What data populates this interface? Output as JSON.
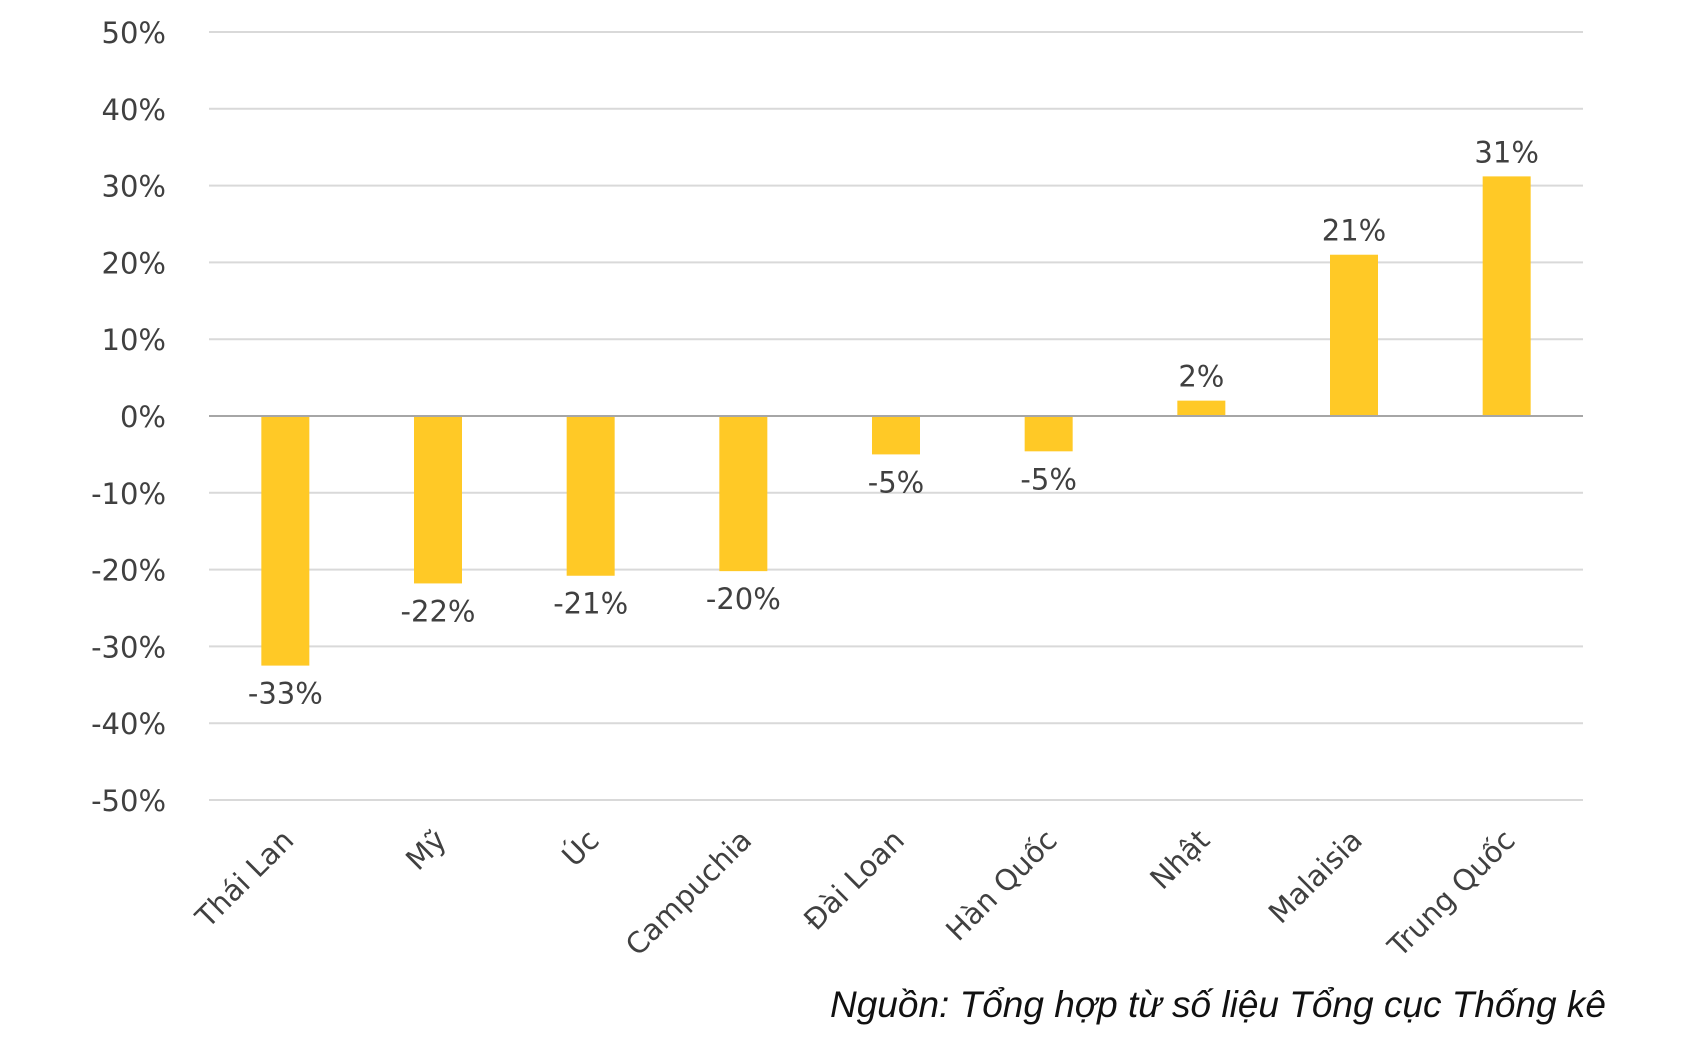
{
  "chart_data": {
    "type": "bar",
    "categories": [
      "Thái Lan",
      "Mỹ",
      "Úc",
      "Campuchia",
      "Đài Loan",
      "Hàn Quốc",
      "Nhật",
      "Malaisia",
      "Trung Quốc"
    ],
    "values": [
      -32.5,
      -21.8,
      -20.8,
      -20.2,
      -5.0,
      -4.6,
      2.0,
      21.0,
      31.2
    ],
    "data_labels": [
      "-33%",
      "-22%",
      "-21%",
      "-20%",
      "-5%",
      "-5%",
      "2%",
      "21%",
      "31%"
    ],
    "ylim": [
      -50,
      50
    ],
    "y_ticks": [
      50,
      40,
      30,
      20,
      10,
      0,
      -10,
      -20,
      -30,
      -40,
      -50
    ],
    "y_tick_labels": [
      "50%",
      "40%",
      "30%",
      "20%",
      "10%",
      "0%",
      "-10%",
      "-20%",
      "-30%",
      "-40%",
      "-50%"
    ],
    "grid": true,
    "legend": "none",
    "title": "",
    "xlabel": "",
    "ylabel": "",
    "bar_color": "#FFC926",
    "grid_color": "#D9D9D9",
    "axis_color": "#A6A6A6"
  },
  "source_note": "Nguồn: Tổng hợp từ số liệu Tổng cục Thống kê"
}
